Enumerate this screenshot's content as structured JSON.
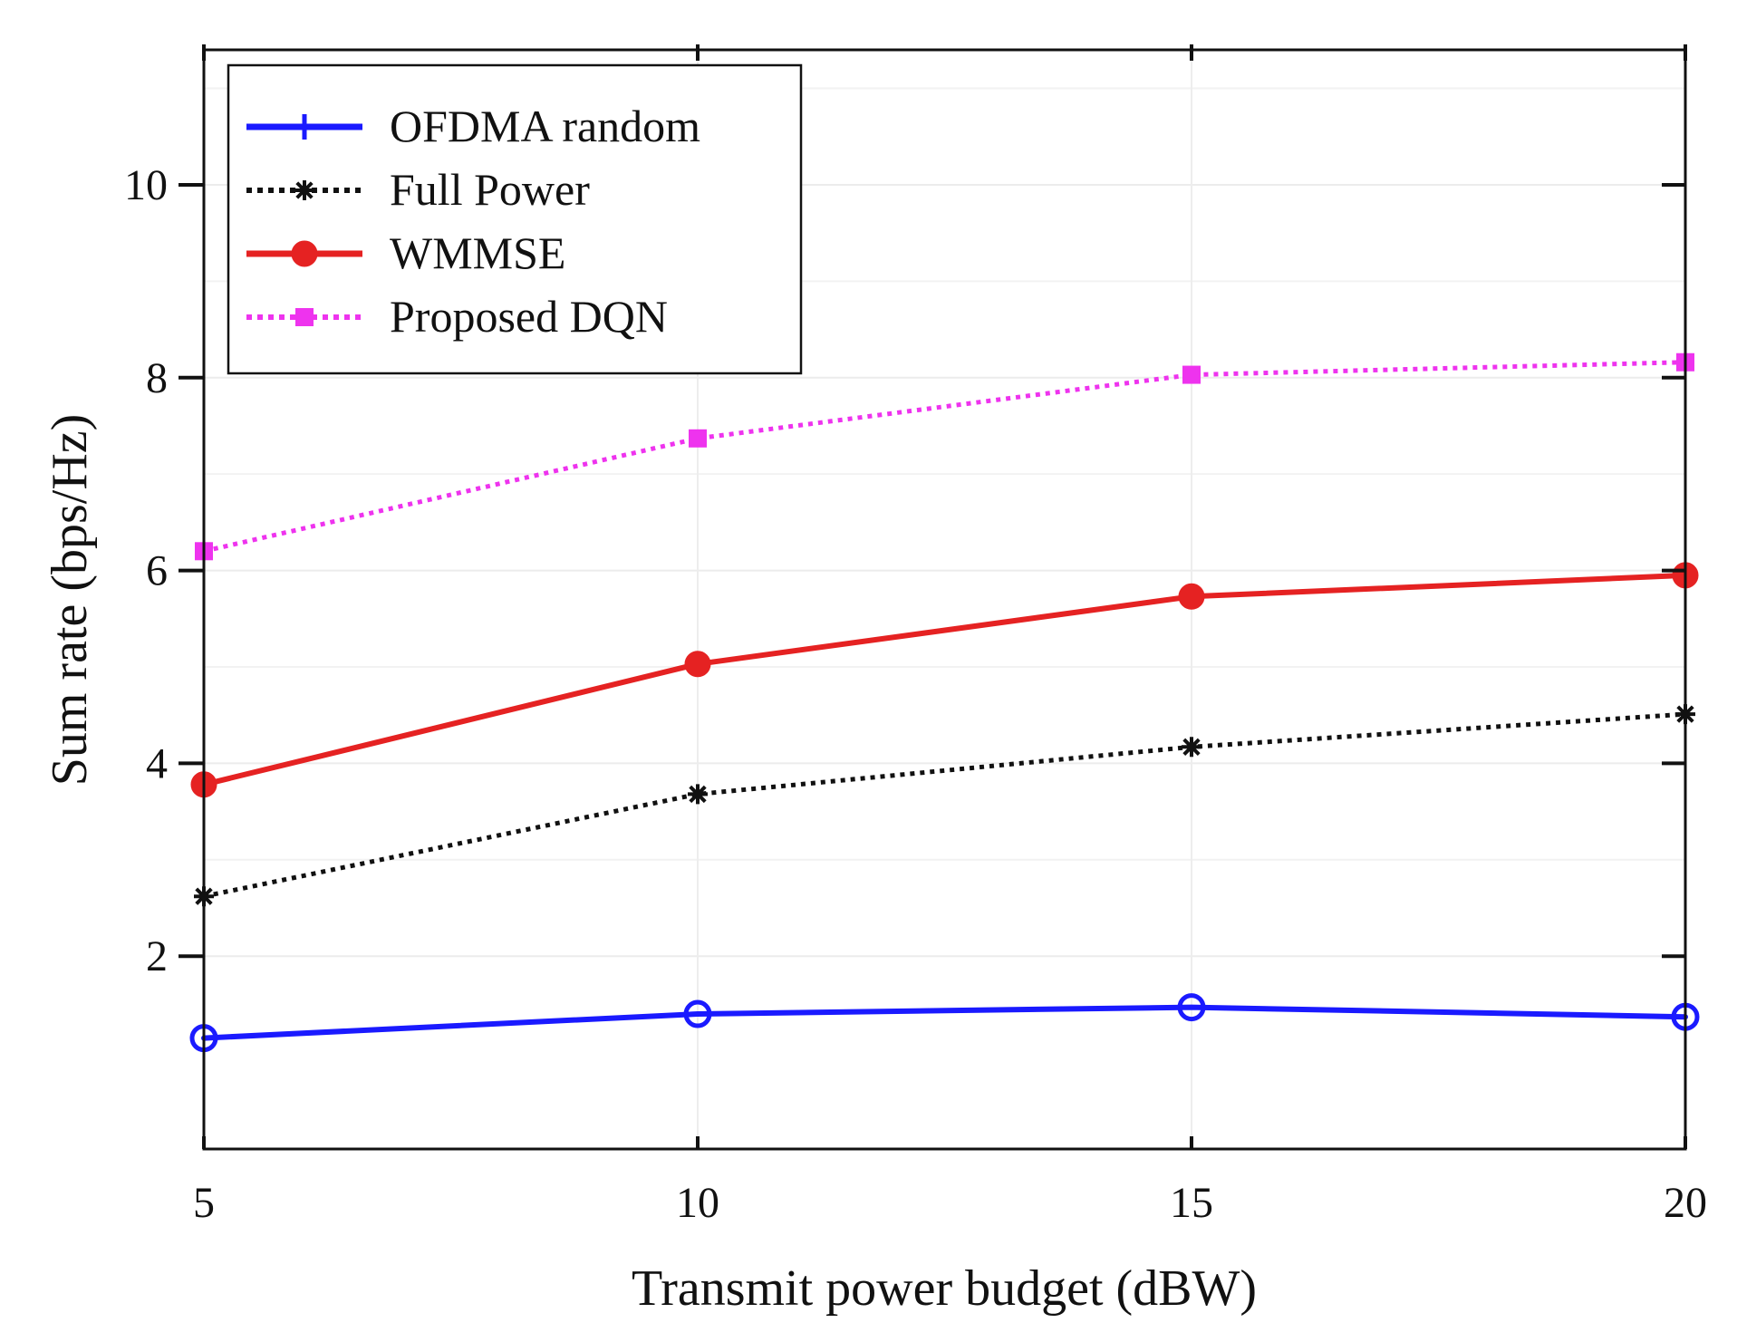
{
  "chart_data": {
    "type": "line",
    "xlabel": "Transmit power budget (dBW)",
    "ylabel": "Sum rate (bps/Hz)",
    "x": [
      5,
      10,
      15,
      20
    ],
    "xticks": [
      5,
      10,
      15,
      20
    ],
    "yticks": [
      2,
      4,
      6,
      8,
      10
    ],
    "xlim": [
      5,
      20
    ],
    "ylim": [
      0,
      11.4
    ],
    "grid": true,
    "legend_position": "top-left",
    "series": [
      {
        "name": "OFDMA random",
        "values": [
          1.15,
          1.4,
          1.47,
          1.37
        ],
        "color": "#1a1aff",
        "line_style": "solid",
        "marker": "circle-open",
        "legend_marker": "plus"
      },
      {
        "name": "Full Power",
        "values": [
          2.62,
          3.68,
          4.17,
          4.51
        ],
        "color": "#111111",
        "line_style": "dotted",
        "marker": "star",
        "legend_marker": "star"
      },
      {
        "name": "WMMSE",
        "values": [
          3.78,
          5.03,
          5.73,
          5.95
        ],
        "color": "#e52222",
        "line_style": "solid",
        "marker": "circle-filled",
        "legend_marker": "circle-filled"
      },
      {
        "name": "Proposed DQN",
        "values": [
          6.2,
          7.37,
          8.03,
          8.16
        ],
        "color": "#ee33ee",
        "line_style": "dotted",
        "marker": "square",
        "legend_marker": "square"
      }
    ]
  }
}
